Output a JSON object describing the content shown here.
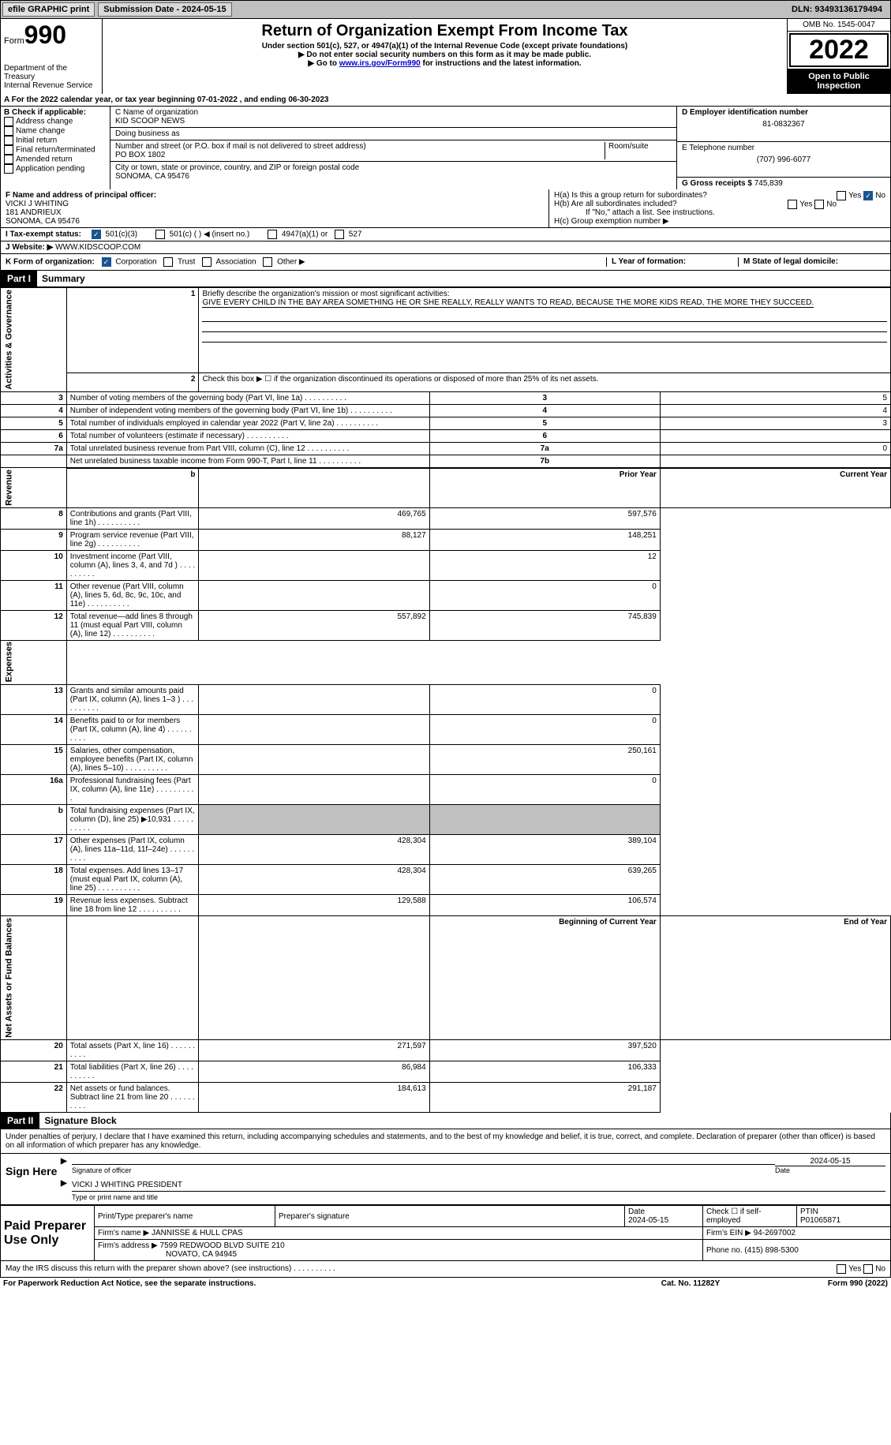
{
  "topbar": {
    "efile": "efile GRAPHIC print",
    "sub_label": "Submission Date - 2024-05-15",
    "dln": "DLN: 93493136179494"
  },
  "header": {
    "form_label": "Form",
    "form_num": "990",
    "dept": "Department of the Treasury",
    "irs": "Internal Revenue Service",
    "title": "Return of Organization Exempt From Income Tax",
    "subtitle": "Under section 501(c), 527, or 4947(a)(1) of the Internal Revenue Code (except private foundations)",
    "note1": "▶ Do not enter social security numbers on this form as it may be made public.",
    "note2_pre": "▶ Go to ",
    "note2_link": "www.irs.gov/Form990",
    "note2_post": " for instructions and the latest information.",
    "omb": "OMB No. 1545-0047",
    "year": "2022",
    "open": "Open to Public Inspection"
  },
  "rowA": "A For the 2022 calendar year, or tax year beginning 07-01-2022    , and ending 06-30-2023",
  "colB": {
    "title": "B Check if applicable:",
    "items": [
      "Address change",
      "Name change",
      "Initial return",
      "Final return/terminated",
      "Amended return",
      "Application pending"
    ]
  },
  "colC": {
    "name_lbl": "C Name of organization",
    "name": "KID SCOOP NEWS",
    "dba_lbl": "Doing business as",
    "dba": "",
    "addr_lbl": "Number and street (or P.O. box if mail is not delivered to street address)",
    "room_lbl": "Room/suite",
    "addr": "PO BOX 1802",
    "city_lbl": "City or town, state or province, country, and ZIP or foreign postal code",
    "city": "SONOMA, CA  95476"
  },
  "colD": {
    "ein_lbl": "D Employer identification number",
    "ein": "81-0832367",
    "phone_lbl": "E Telephone number",
    "phone": "(707) 996-6077",
    "gross_lbl": "G Gross receipts $",
    "gross": "745,839"
  },
  "rowF": {
    "lbl": "F Name and address of principal officer:",
    "name": "VICKI J WHITING",
    "addr1": "181 ANDRIEUX",
    "addr2": "SONOMA, CA  95476"
  },
  "rowH": {
    "ha": "H(a)  Is this a group return for subordinates?",
    "hb": "H(b)  Are all subordinates included?",
    "hb_note": "If \"No,\" attach a list. See instructions.",
    "hc": "H(c)  Group exemption number ▶",
    "yes": "Yes",
    "no": "No"
  },
  "rowI": {
    "lbl": "I    Tax-exempt status:",
    "opt1": "501(c)(3)",
    "opt2": "501(c) (   ) ◀ (insert no.)",
    "opt3": "4947(a)(1) or",
    "opt4": "527"
  },
  "rowJ": {
    "lbl": "J   Website: ▶",
    "val": "WWW.KIDSCOOP.COM"
  },
  "rowK": {
    "lbl": "K Form of organization:",
    "opts": [
      "Corporation",
      "Trust",
      "Association",
      "Other ▶"
    ],
    "L": "L Year of formation:",
    "M": "M State of legal domicile:"
  },
  "part1": {
    "hdr": "Part I",
    "title": "Summary",
    "l1_lbl": "Briefly describe the organization's mission or most significant activities:",
    "l1_txt": "GIVE EVERY CHILD IN THE BAY AREA SOMETHING HE OR SHE REALLY, REALLY WANTS TO READ, BECAUSE THE MORE KIDS READ, THE MORE THEY SUCCEED.",
    "l2": "Check this box ▶ ☐ if the organization discontinued its operations or disposed of more than 25% of its net assets.",
    "rows_ag": [
      {
        "n": "3",
        "t": "Number of voting members of the governing body (Part VI, line 1a)",
        "b": "3",
        "v": "5"
      },
      {
        "n": "4",
        "t": "Number of independent voting members of the governing body (Part VI, line 1b)",
        "b": "4",
        "v": "4"
      },
      {
        "n": "5",
        "t": "Total number of individuals employed in calendar year 2022 (Part V, line 2a)",
        "b": "5",
        "v": "3"
      },
      {
        "n": "6",
        "t": "Total number of volunteers (estimate if necessary)",
        "b": "6",
        "v": ""
      },
      {
        "n": "7a",
        "t": "Total unrelated business revenue from Part VIII, column (C), line 12",
        "b": "7a",
        "v": "0"
      },
      {
        "n": "",
        "t": "Net unrelated business taxable income from Form 990-T, Part I, line 11",
        "b": "7b",
        "v": ""
      }
    ],
    "pyear": "Prior Year",
    "cyear": "Current Year",
    "rev": [
      {
        "n": "8",
        "t": "Contributions and grants (Part VIII, line 1h)",
        "p": "469,765",
        "c": "597,576"
      },
      {
        "n": "9",
        "t": "Program service revenue (Part VIII, line 2g)",
        "p": "88,127",
        "c": "148,251"
      },
      {
        "n": "10",
        "t": "Investment income (Part VIII, column (A), lines 3, 4, and 7d )",
        "p": "",
        "c": "12"
      },
      {
        "n": "11",
        "t": "Other revenue (Part VIII, column (A), lines 5, 6d, 8c, 9c, 10c, and 11e)",
        "p": "",
        "c": "0"
      },
      {
        "n": "12",
        "t": "Total revenue—add lines 8 through 11 (must equal Part VIII, column (A), line 12)",
        "p": "557,892",
        "c": "745,839"
      }
    ],
    "exp": [
      {
        "n": "13",
        "t": "Grants and similar amounts paid (Part IX, column (A), lines 1–3 )",
        "p": "",
        "c": "0"
      },
      {
        "n": "14",
        "t": "Benefits paid to or for members (Part IX, column (A), line 4)",
        "p": "",
        "c": "0"
      },
      {
        "n": "15",
        "t": "Salaries, other compensation, employee benefits (Part IX, column (A), lines 5–10)",
        "p": "",
        "c": "250,161"
      },
      {
        "n": "16a",
        "t": "Professional fundraising fees (Part IX, column (A), line 11e)",
        "p": "",
        "c": "0"
      },
      {
        "n": "b",
        "t": "Total fundraising expenses (Part IX, column (D), line 25) ▶10,931",
        "p": "shade",
        "c": "shade"
      },
      {
        "n": "17",
        "t": "Other expenses (Part IX, column (A), lines 11a–11d, 11f–24e)",
        "p": "428,304",
        "c": "389,104"
      },
      {
        "n": "18",
        "t": "Total expenses. Add lines 13–17 (must equal Part IX, column (A), line 25)",
        "p": "428,304",
        "c": "639,265"
      },
      {
        "n": "19",
        "t": "Revenue less expenses. Subtract line 18 from line 12",
        "p": "129,588",
        "c": "106,574"
      }
    ],
    "byear": "Beginning of Current Year",
    "eyear": "End of Year",
    "net": [
      {
        "n": "20",
        "t": "Total assets (Part X, line 16)",
        "p": "271,597",
        "c": "397,520"
      },
      {
        "n": "21",
        "t": "Total liabilities (Part X, line 26)",
        "p": "86,984",
        "c": "106,333"
      },
      {
        "n": "22",
        "t": "Net assets or fund balances. Subtract line 21 from line 20",
        "p": "184,613",
        "c": "291,187"
      }
    ],
    "vlabels": {
      "ag": "Activities & Governance",
      "rev": "Revenue",
      "exp": "Expenses",
      "net": "Net Assets or Fund Balances"
    }
  },
  "part2": {
    "hdr": "Part II",
    "title": "Signature Block",
    "decl": "Under penalties of perjury, I declare that I have examined this return, including accompanying schedules and statements, and to the best of my knowledge and belief, it is true, correct, and complete. Declaration of preparer (other than officer) is based on all information of which preparer has any knowledge.",
    "sign_here": "Sign Here",
    "sig_officer": "Signature of officer",
    "sig_date": "2024-05-15",
    "date_lbl": "Date",
    "officer_name": "VICKI J WHITING  PRESIDENT",
    "type_name": "Type or print name and title",
    "paid": "Paid Preparer Use Only",
    "prep_name_lbl": "Print/Type preparer's name",
    "prep_sig_lbl": "Preparer's signature",
    "prep_date": "2024-05-15",
    "check_self": "Check ☐ if self-employed",
    "ptin_lbl": "PTIN",
    "ptin": "P01065871",
    "firm_name_lbl": "Firm's name    ▶",
    "firm_name": "JANNISSE & HULL CPAS",
    "firm_ein_lbl": "Firm's EIN ▶",
    "firm_ein": "94-2697002",
    "firm_addr_lbl": "Firm's address ▶",
    "firm_addr1": "7599 REDWOOD BLVD SUITE 210",
    "firm_addr2": "NOVATO, CA  94945",
    "firm_phone_lbl": "Phone no.",
    "firm_phone": "(415) 898-5300",
    "may_irs": "May the IRS discuss this return with the preparer shown above? (see instructions)"
  },
  "footer": {
    "left": "For Paperwork Reduction Act Notice, see the separate instructions.",
    "mid": "Cat. No. 11282Y",
    "right": "Form 990 (2022)"
  }
}
